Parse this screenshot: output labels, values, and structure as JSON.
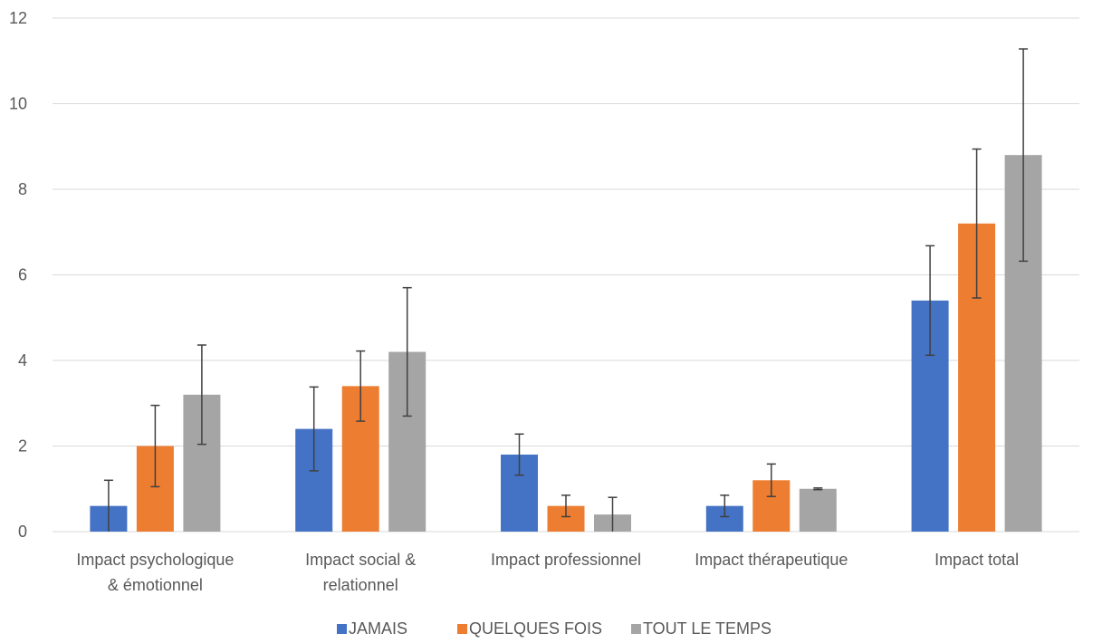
{
  "chart_data": {
    "type": "bar",
    "title": "",
    "xlabel": "",
    "ylabel": "",
    "ylim": [
      0,
      12
    ],
    "yticks": [
      0,
      2,
      4,
      6,
      8,
      10,
      12
    ],
    "grid": true,
    "legend_position": "bottom",
    "categories": [
      [
        "Impact psychologique",
        "& émotionnel"
      ],
      [
        "Impact social &",
        "relationnel"
      ],
      [
        "Impact professionnel"
      ],
      [
        "Impact thérapeutique"
      ],
      [
        "Impact total"
      ]
    ],
    "series": [
      {
        "name": "JAMAIS",
        "color": "#4472C4",
        "values": [
          0.6,
          2.4,
          1.8,
          0.6,
          5.4
        ],
        "error": [
          0.6,
          0.98,
          0.48,
          0.25,
          1.28
        ]
      },
      {
        "name": "QUELQUES FOIS",
        "color": "#ED7D31",
        "values": [
          2.0,
          3.4,
          0.6,
          1.2,
          7.2
        ],
        "error": [
          0.95,
          0.82,
          0.25,
          0.38,
          1.74
        ]
      },
      {
        "name": "TOUT LE TEMPS",
        "color": "#A5A5A5",
        "values": [
          3.2,
          4.2,
          0.4,
          1.0,
          8.8
        ],
        "error": [
          1.16,
          1.5,
          0.4,
          0.02,
          2.48
        ]
      }
    ]
  }
}
